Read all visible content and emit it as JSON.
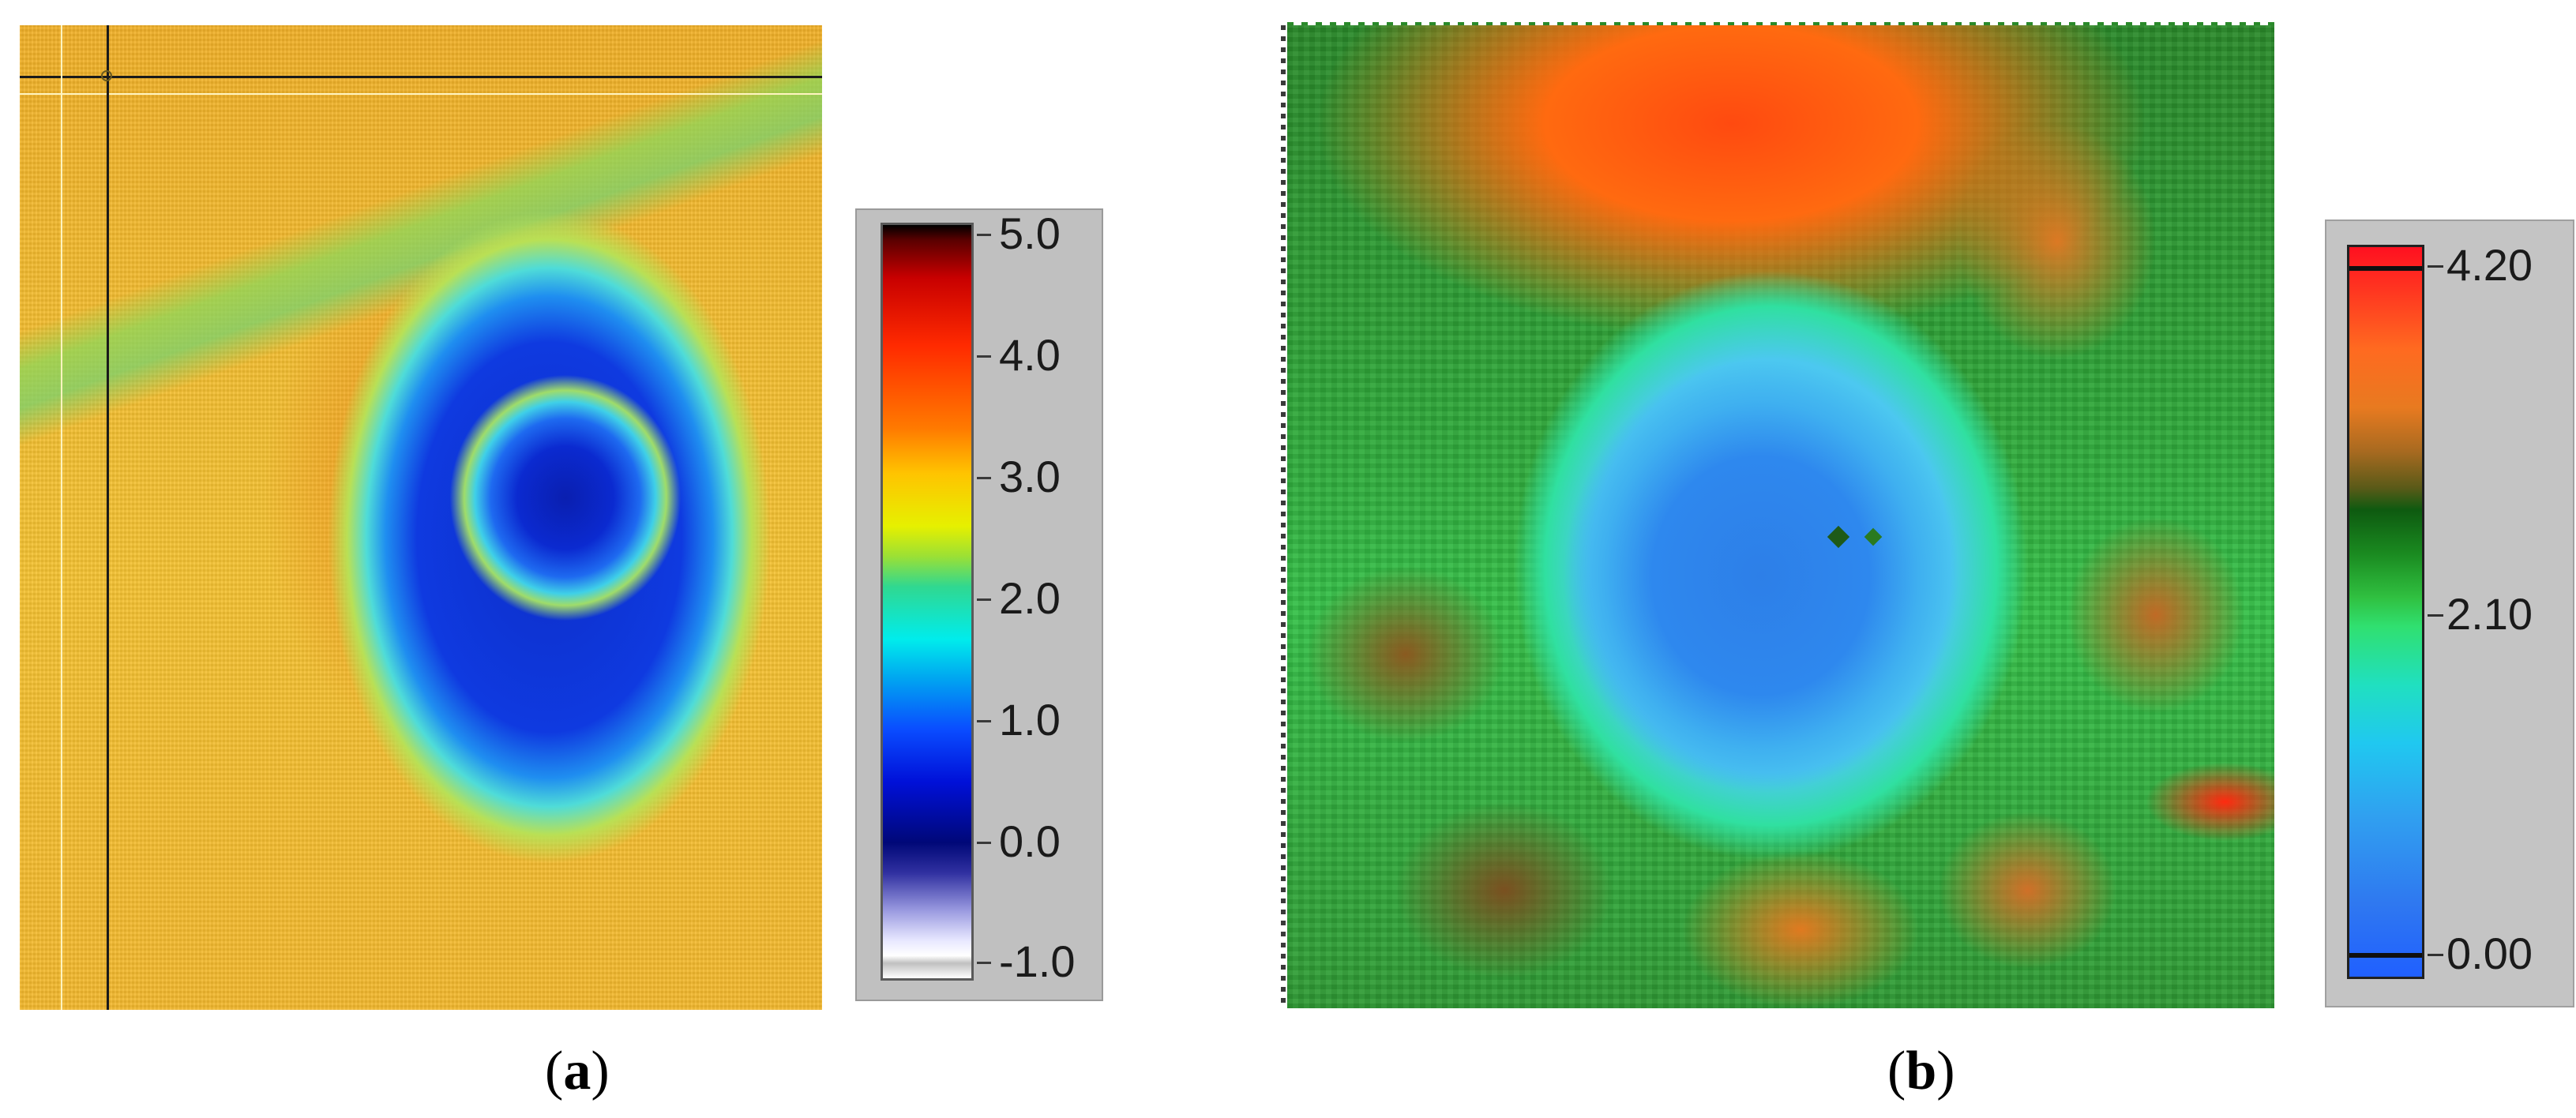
{
  "panels": {
    "a": {
      "caption_open": "(",
      "caption_letter": "a",
      "caption_close": ")",
      "colorbar_labels": [
        "5.0",
        "4.0",
        "3.0",
        "2.0",
        "1.0",
        "0.0",
        "-1.0"
      ],
      "colors": {
        "crosshair_dark": "#1a1a1a",
        "crosshair_light": "#fff4c0"
      }
    },
    "b": {
      "caption_open": "(",
      "caption_letter": "b",
      "caption_close": ")",
      "colorbar_labels": [
        "4.20",
        "2.10",
        "0.00"
      ],
      "colors": {
        "marker": "#101010"
      }
    }
  }
}
